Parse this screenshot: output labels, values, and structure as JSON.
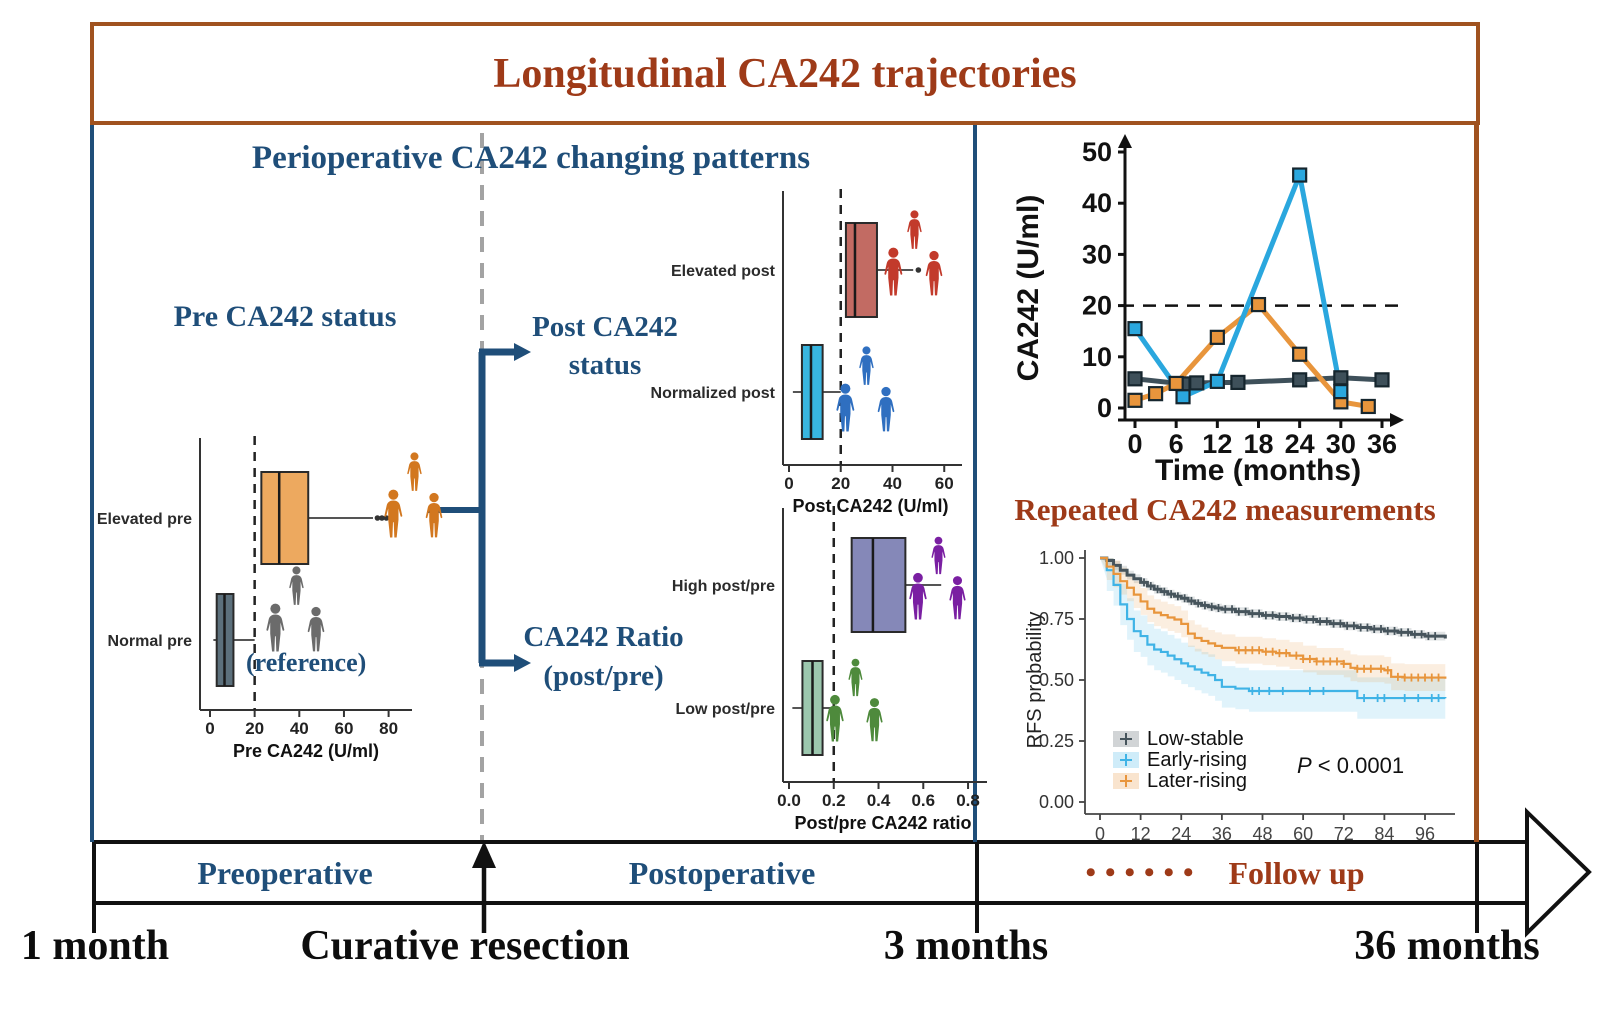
{
  "title": "Longitudinal CA242 trajectories",
  "left_panel": {
    "heading": "Perioperative CA242 changing patterns",
    "pre_status_label": "Pre CA242 status",
    "post_status_label": [
      "Post CA242",
      "status"
    ],
    "ratio_label": [
      "CA242 Ratio",
      "(post/pre)"
    ],
    "reference_note": "(reference)"
  },
  "right_panel": {
    "heading": "Repeated CA242 measurements"
  },
  "timeline": {
    "phases": [
      {
        "label": "Preoperative"
      },
      {
        "label": "Postoperative"
      },
      {
        "label": "Follow up",
        "dots": "••••••"
      }
    ],
    "milestones": [
      "1 month",
      "Curative resection",
      "3 months",
      "36 months"
    ]
  },
  "colors": {
    "brown_border": "#A0521F",
    "brown_text": "#9E3A18",
    "navy": "#1F4E79",
    "dashed_gray": "#A3A3A3",
    "axis_black": "#111111"
  },
  "chart_data": [
    {
      "id": "pre_box",
      "type": "boxplot",
      "orientation": "horizontal",
      "xlabel": "Pre CA242 (U/ml)",
      "xticks": [
        0,
        20,
        40,
        60,
        80
      ],
      "xtick_labels": [
        "0",
        "20",
        "40",
        "60",
        "80"
      ],
      "xlim": [
        0,
        86
      ],
      "ref_line": 20,
      "rows": [
        {
          "label": "Elevated pre",
          "whisker_low": 23,
          "q1": 23,
          "median": 31,
          "q3": 44,
          "whisker_high": 73,
          "outliers": [
            75,
            77,
            79
          ],
          "box_color": "#EDA95F",
          "people_color": "#D2771F"
        },
        {
          "label": "Normal pre",
          "whisker_low": 1.5,
          "q1": 3,
          "median": 6.5,
          "q3": 10.5,
          "whisker_high": 20,
          "outliers": [],
          "box_color": "#5C707C",
          "people_color": "#6B6B6B"
        }
      ]
    },
    {
      "id": "post_box",
      "type": "boxplot",
      "orientation": "horizontal",
      "xlabel": "Post CA242 (U/ml)",
      "xticks": [
        0,
        20,
        40,
        60
      ],
      "xtick_labels": [
        "0",
        "20",
        "40",
        "60"
      ],
      "xlim": [
        0,
        63
      ],
      "ref_line": 20,
      "rows": [
        {
          "label": "Elevated post",
          "whisker_low": 22,
          "q1": 22,
          "median": 25.5,
          "q3": 34,
          "whisker_high": 48,
          "outliers": [
            50
          ],
          "box_color": "#C26B63",
          "people_color": "#C23A2B"
        },
        {
          "label": "Normalized post",
          "whisker_low": 1.5,
          "q1": 5,
          "median": 8.5,
          "q3": 13,
          "whisker_high": 20,
          "outliers": [],
          "box_color": "#38B6E0",
          "people_color": "#2F6FC0"
        }
      ]
    },
    {
      "id": "ratio_box",
      "type": "boxplot",
      "orientation": "horizontal",
      "xlabel": "Post/pre CA242 ratio",
      "xticks": [
        0,
        0.2,
        0.4,
        0.6,
        0.8
      ],
      "xtick_labels": [
        "0.0",
        "0.2",
        "0.4",
        "0.6",
        "0.8"
      ],
      "xlim": [
        0,
        0.84
      ],
      "ref_line": 0.2,
      "rows": [
        {
          "label": "High post/pre",
          "whisker_low": 0.28,
          "q1": 0.28,
          "median": 0.375,
          "q3": 0.52,
          "whisker_high": 0.68,
          "outliers": [],
          "box_color": "#8588B8",
          "people_color": "#7A1FA2"
        },
        {
          "label": "Low post/pre",
          "whisker_low": 0.015,
          "q1": 0.06,
          "median": 0.105,
          "q3": 0.15,
          "whisker_high": 0.2,
          "outliers": [],
          "box_color": "#9CC7AE",
          "people_color": "#4E8A3C"
        }
      ]
    },
    {
      "id": "trajectories",
      "type": "line",
      "ylabel": "CA242 (U/ml)",
      "xlabel": "Time (months)",
      "yticks": [
        0,
        10,
        20,
        30,
        40,
        50
      ],
      "xticks": [
        0,
        6,
        12,
        18,
        24,
        30,
        36
      ],
      "ylim": [
        0,
        50
      ],
      "xlim": [
        0,
        36
      ],
      "ref_line_y": 20,
      "series": [
        {
          "name": "Low-stable",
          "color": "#3E505A",
          "points": [
            [
              0,
              5.7
            ],
            [
              7,
              4.7
            ],
            [
              9,
              4.9
            ],
            [
              15,
              5.0
            ],
            [
              24,
              5.5
            ],
            [
              30,
              5.9
            ],
            [
              36,
              5.5
            ]
          ]
        },
        {
          "name": "Later-rising",
          "color": "#E8953C",
          "points": [
            [
              0,
              1.5
            ],
            [
              3,
              2.8
            ],
            [
              6,
              4.8
            ],
            [
              12,
              13.8
            ],
            [
              18,
              20.2
            ],
            [
              24,
              10.5
            ],
            [
              30,
              1.2
            ],
            [
              34,
              0.3
            ]
          ]
        },
        {
          "name": "Early-rising",
          "color": "#2AA7DE",
          "points": [
            [
              0,
              15.5
            ],
            [
              7,
              2.2
            ],
            [
              12,
              5.2
            ],
            [
              24,
              45.5
            ],
            [
              30,
              3.2
            ]
          ]
        }
      ]
    },
    {
      "id": "km",
      "type": "km_survival",
      "ylabel": "RFS probability",
      "yticks": [
        0,
        0.25,
        0.5,
        0.75,
        1.0
      ],
      "ytick_labels": [
        "0.00",
        "0.25",
        "0.50",
        "0.75",
        "1.00"
      ],
      "xticks": [
        0,
        12,
        24,
        36,
        48,
        60,
        72,
        84,
        96
      ],
      "p_value": "P < 0.0001",
      "legend_position": "bottom-left-inside",
      "series": [
        {
          "name": "Low-stable",
          "color": "#46545C",
          "ci_half_width": 0.018,
          "steps": [
            [
              0,
              1
            ],
            [
              2,
              0.99
            ],
            [
              4,
              0.97
            ],
            [
              6,
              0.95
            ],
            [
              8,
              0.93
            ],
            [
              10,
              0.915
            ],
            [
              12,
              0.9
            ],
            [
              14,
              0.885
            ],
            [
              16,
              0.872
            ],
            [
              18,
              0.862
            ],
            [
              20,
              0.852
            ],
            [
              22,
              0.843
            ],
            [
              24,
              0.835
            ],
            [
              26,
              0.824
            ],
            [
              28,
              0.814
            ],
            [
              30,
              0.806
            ],
            [
              32,
              0.8
            ],
            [
              34,
              0.795
            ],
            [
              36,
              0.79
            ],
            [
              40,
              0.78
            ],
            [
              44,
              0.772
            ],
            [
              48,
              0.765
            ],
            [
              52,
              0.76
            ],
            [
              56,
              0.754
            ],
            [
              60,
              0.748
            ],
            [
              64,
              0.74
            ],
            [
              68,
              0.731
            ],
            [
              72,
              0.722
            ],
            [
              76,
              0.715
            ],
            [
              80,
              0.709
            ],
            [
              84,
              0.701
            ],
            [
              88,
              0.695
            ],
            [
              92,
              0.687
            ],
            [
              96,
              0.68
            ],
            [
              102,
              0.67
            ]
          ],
          "censor_times": [
            13,
            15,
            17,
            19,
            21,
            23,
            25,
            27,
            29,
            31,
            33,
            35,
            37,
            39,
            41,
            43,
            45,
            47,
            49,
            51,
            53,
            55,
            57,
            59,
            61,
            63,
            65,
            67,
            69,
            71,
            73,
            75,
            77,
            79,
            81,
            83,
            85,
            87,
            89,
            91,
            93,
            95,
            97,
            99
          ]
        },
        {
          "name": "Early-rising",
          "color": "#3FB3E6",
          "ci_half_width": 0.085,
          "steps": [
            [
              0,
              1
            ],
            [
              2,
              0.95
            ],
            [
              4,
              0.89
            ],
            [
              6,
              0.81
            ],
            [
              8,
              0.75
            ],
            [
              10,
              0.7
            ],
            [
              12,
              0.68
            ],
            [
              14,
              0.645
            ],
            [
              16,
              0.625
            ],
            [
              18,
              0.615
            ],
            [
              20,
              0.6
            ],
            [
              22,
              0.585
            ],
            [
              24,
              0.568
            ],
            [
              26,
              0.556
            ],
            [
              28,
              0.543
            ],
            [
              30,
              0.53
            ],
            [
              32,
              0.52
            ],
            [
              34,
              0.5
            ],
            [
              36,
              0.472
            ],
            [
              40,
              0.465
            ],
            [
              44,
              0.455
            ],
            [
              72,
              0.455
            ],
            [
              76,
              0.426
            ],
            [
              102,
              0.425
            ]
          ],
          "censor_times": [
            45,
            47,
            50,
            54,
            62,
            66,
            78,
            82,
            84,
            90,
            94,
            98,
            100
          ]
        },
        {
          "name": "Later-rising",
          "color": "#E8953C",
          "ci_half_width": 0.055,
          "steps": [
            [
              0,
              1
            ],
            [
              2,
              0.965
            ],
            [
              4,
              0.935
            ],
            [
              6,
              0.905
            ],
            [
              8,
              0.878
            ],
            [
              10,
              0.85
            ],
            [
              12,
              0.822
            ],
            [
              14,
              0.792
            ],
            [
              16,
              0.776
            ],
            [
              18,
              0.766
            ],
            [
              20,
              0.756
            ],
            [
              22,
              0.748
            ],
            [
              24,
              0.73
            ],
            [
              26,
              0.69
            ],
            [
              28,
              0.672
            ],
            [
              30,
              0.66
            ],
            [
              32,
              0.65
            ],
            [
              34,
              0.64
            ],
            [
              36,
              0.632
            ],
            [
              40,
              0.622
            ],
            [
              48,
              0.616
            ],
            [
              52,
              0.61
            ],
            [
              56,
              0.6
            ],
            [
              60,
              0.586
            ],
            [
              64,
              0.576
            ],
            [
              72,
              0.566
            ],
            [
              74,
              0.55
            ],
            [
              76,
              0.546
            ],
            [
              84,
              0.54
            ],
            [
              86,
              0.513
            ],
            [
              90,
              0.51
            ],
            [
              102,
              0.505
            ]
          ],
          "censor_times": [
            41,
            43,
            45,
            47,
            49,
            51,
            53,
            55,
            58,
            60,
            62,
            64,
            66,
            68,
            70,
            72,
            76,
            78,
            80,
            83,
            85,
            88,
            90,
            92,
            94,
            96,
            98,
            100
          ]
        }
      ]
    }
  ]
}
